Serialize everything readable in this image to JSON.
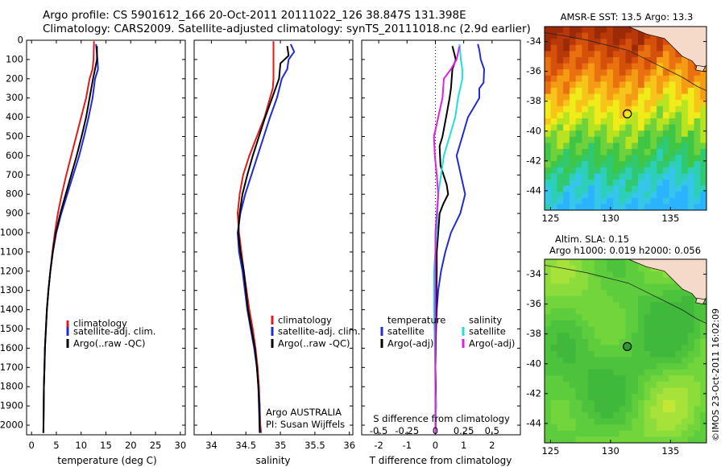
{
  "header": {
    "line1": "Argo profile: CS 5901612_166 20-Oct-2011 20111022_126 38.847S 131.398E",
    "line2": "Climatology: CARS2009. Satellite-adjusted climatology: synTS_20111018.nc (2.9d earlier)"
  },
  "footer_stamp": "©IMOS 23-Oct-2011 16:02:09",
  "colors": {
    "climatology": "#e01b1b",
    "satellite": "#1f2bd6",
    "argo": "#000000",
    "argo_salinity": "#e31ee3",
    "satellite_salinity": "#20dede"
  },
  "chart_data": [
    {
      "type": "line",
      "id": "temperature",
      "xlabel": "temperature (deg C)",
      "ylabel": "",
      "xlim": [
        -1,
        31
      ],
      "ylim": [
        2050,
        0
      ],
      "xticks": [
        0,
        5,
        10,
        15,
        20,
        25,
        30
      ],
      "yticks": [
        0,
        100,
        200,
        300,
        400,
        500,
        600,
        700,
        800,
        900,
        1000,
        1100,
        1200,
        1300,
        1400,
        1500,
        1600,
        1700,
        1800,
        1900,
        2000
      ],
      "legend": [
        "climatology",
        "satellite-adj. clim.",
        "Argo(..raw -QC)"
      ],
      "series": [
        {
          "name": "climatology",
          "color": "#e01b1b",
          "x": [
            12.6,
            12.5,
            12.3,
            11.7,
            11.0,
            10.0,
            9.0,
            8.0,
            7.0,
            6.1,
            5.3,
            4.7,
            4.2,
            3.8,
            3.4,
            3.1,
            2.9,
            2.7,
            2.6,
            2.5,
            2.4
          ],
          "y": [
            5,
            100,
            150,
            200,
            300,
            400,
            500,
            600,
            700,
            800,
            900,
            1000,
            1100,
            1200,
            1300,
            1400,
            1500,
            1600,
            1700,
            1800,
            2040
          ]
        },
        {
          "name": "satellite-adj. clim.",
          "color": "#1f2bd6",
          "x": [
            13.0,
            13.3,
            13.4,
            12.8,
            12.3,
            11.5,
            10.6,
            9.6,
            8.4,
            7.2,
            6.0,
            5.0,
            4.3,
            3.8,
            3.4,
            3.1,
            2.9,
            2.7,
            2.6,
            2.5,
            2.4
          ],
          "y": [
            20,
            100,
            150,
            200,
            300,
            400,
            500,
            600,
            700,
            800,
            900,
            1000,
            1100,
            1200,
            1300,
            1400,
            1500,
            1600,
            1700,
            1800,
            2040
          ]
        },
        {
          "name": "Argo(..raw -QC)",
          "color": "#000000",
          "x": [
            13.2,
            13.2,
            12.8,
            12.4,
            11.7,
            11.0,
            10.1,
            9.1,
            8.0,
            6.9,
            5.8,
            4.9,
            4.3,
            3.8,
            3.4,
            3.1,
            2.9,
            2.7,
            2.6,
            2.5,
            2.4
          ],
          "y": [
            30,
            100,
            150,
            200,
            300,
            400,
            500,
            600,
            700,
            800,
            900,
            1000,
            1100,
            1200,
            1300,
            1400,
            1500,
            1600,
            1700,
            1800,
            2040
          ]
        }
      ]
    },
    {
      "type": "line",
      "id": "salinity",
      "xlabel": "salinity",
      "ylabel": "",
      "xlim": [
        33.75,
        36.05
      ],
      "ylim": [
        2050,
        0
      ],
      "xticks": [
        34,
        34.5,
        35,
        35.5,
        36
      ],
      "legend": [
        "climatology",
        "satellite-adj. clim.",
        "Argo(..raw -QC)"
      ],
      "annotation": [
        "Argo AUSTRALIA",
        "PI: Susan Wijffels"
      ],
      "series": [
        {
          "name": "climatology",
          "color": "#e01b1b",
          "x": [
            34.9,
            34.9,
            34.89,
            34.85,
            34.77,
            34.66,
            34.55,
            34.46,
            34.41,
            34.38,
            34.4,
            34.47,
            34.55,
            34.6,
            34.64,
            34.67,
            34.69,
            34.7,
            34.71,
            34.72
          ],
          "y": [
            5,
            200,
            250,
            300,
            400,
            500,
            600,
            700,
            800,
            900,
            1000,
            1200,
            1400,
            1500,
            1600,
            1700,
            1800,
            1900,
            2000,
            2040
          ]
        },
        {
          "name": "satellite-adj. clim.",
          "color": "#1f2bd6",
          "x": [
            35.15,
            35.2,
            35.12,
            35.1,
            35.02,
            34.95,
            34.85,
            34.76,
            34.67,
            34.58,
            34.49,
            34.42,
            34.38,
            34.4,
            34.45,
            34.52,
            34.57,
            34.62,
            34.66,
            34.68,
            34.7,
            34.7,
            34.71
          ],
          "y": [
            20,
            60,
            100,
            150,
            200,
            300,
            400,
            500,
            600,
            700,
            800,
            900,
            1000,
            1100,
            1200,
            1400,
            1500,
            1600,
            1700,
            1800,
            1900,
            2000,
            2040
          ]
        },
        {
          "name": "Argo(..raw -QC)",
          "color": "#000000",
          "x": [
            35.1,
            35.12,
            35.0,
            34.98,
            34.88,
            34.78,
            34.69,
            34.6,
            34.52,
            34.45,
            34.41,
            34.39,
            34.42,
            34.47,
            34.53,
            34.58,
            34.63,
            34.66,
            34.68,
            34.69,
            34.7
          ],
          "y": [
            30,
            80,
            120,
            200,
            300,
            400,
            500,
            600,
            700,
            800,
            900,
            1000,
            1100,
            1200,
            1400,
            1500,
            1600,
            1700,
            1800,
            1900,
            2040
          ]
        }
      ]
    },
    {
      "type": "line",
      "id": "difference",
      "xlabel": "T difference from climatology",
      "xlabel2": "S difference from climatology",
      "xlim": [
        -2.6,
        3.0
      ],
      "ylim": [
        2050,
        0
      ],
      "xticks": [
        -2,
        -1,
        0,
        1,
        2
      ],
      "xticks2": [
        "-0.5",
        "-0.25",
        "0",
        "0.25",
        "0.5"
      ],
      "legend_headers": [
        "temperature",
        "salinity"
      ],
      "legend_left": [
        "satellite",
        "Argo(-adj)"
      ],
      "legend_right": [
        "satellite",
        "Argo(-adj)"
      ],
      "series": [
        {
          "name": "satellite",
          "color": "#1f2bd6",
          "x": [
            1.5,
            1.55,
            1.6,
            1.72,
            1.7,
            1.55,
            1.55,
            1.35,
            1.15,
            0.95,
            0.75,
            0.9,
            1.05,
            0.88,
            0.55,
            0.35,
            0.2,
            0.1,
            0.05,
            0.02,
            0.0,
            0.02,
            0.0
          ],
          "y": [
            20,
            50,
            100,
            150,
            220,
            250,
            300,
            350,
            400,
            500,
            600,
            700,
            800,
            900,
            1000,
            1100,
            1200,
            1300,
            1400,
            1500,
            1700,
            1900,
            2040
          ]
        },
        {
          "name": "Argo(-adj)",
          "color": "#000000",
          "x": [
            0.6,
            0.72,
            0.6,
            0.55,
            0.5,
            0.38,
            0.25,
            0.15,
            0.18,
            0.4,
            0.45,
            0.28,
            0.15,
            0.1,
            0.05,
            0.05,
            0.03,
            0.02,
            0.0,
            0.02,
            0.0
          ],
          "y": [
            30,
            100,
            150,
            250,
            300,
            400,
            500,
            550,
            650,
            750,
            800,
            850,
            900,
            1000,
            1100,
            1200,
            1400,
            1500,
            1700,
            1900,
            2040
          ]
        },
        {
          "name": "satellite",
          "color": "#20dede",
          "x": [
            0.85,
            0.9,
            0.95,
            0.95,
            0.8,
            0.7,
            0.5,
            0.3,
            0.2,
            0.1,
            0.05,
            -0.05,
            -0.05,
            -0.02,
            0.0,
            0.02,
            0.0
          ],
          "y": [
            20,
            100,
            150,
            200,
            300,
            400,
            500,
            600,
            700,
            800,
            1000,
            1200,
            1400,
            1600,
            1800,
            1900,
            2040
          ]
        },
        {
          "name": "Argo(-adj)",
          "color": "#e31ee3",
          "x": [
            0.85,
            0.75,
            0.55,
            0.3,
            0.25,
            0.1,
            -0.05,
            -0.02,
            0.05,
            0.1,
            0.0,
            0.0,
            0.0
          ],
          "y": [
            30,
            100,
            150,
            200,
            300,
            400,
            500,
            600,
            700,
            800,
            1000,
            1500,
            2040
          ]
        }
      ]
    },
    {
      "type": "heatmap",
      "id": "sst-map",
      "title": "AMSR-E SST: 13.5 Argo: 13.3",
      "xticks": [
        125,
        130,
        135
      ],
      "yticks": [
        -34,
        -36,
        -38,
        -40,
        -42,
        -44
      ],
      "xlim": [
        124.5,
        138
      ],
      "ylim": [
        -45.3,
        -33
      ],
      "marker": {
        "lon": 131.398,
        "lat": -38.847
      }
    },
    {
      "type": "heatmap",
      "id": "sla-map",
      "title": "Altim. SLA: 0.15",
      "subtitle": "Argo h1000: 0.019 h2000: 0.056",
      "xticks": [
        125,
        130,
        135
      ],
      "yticks": [
        -34,
        -36,
        -38,
        -40,
        -42,
        -44
      ],
      "xlim": [
        124.5,
        138
      ],
      "ylim": [
        -45.3,
        -33
      ],
      "marker": {
        "lon": 131.398,
        "lat": -38.847
      }
    }
  ]
}
